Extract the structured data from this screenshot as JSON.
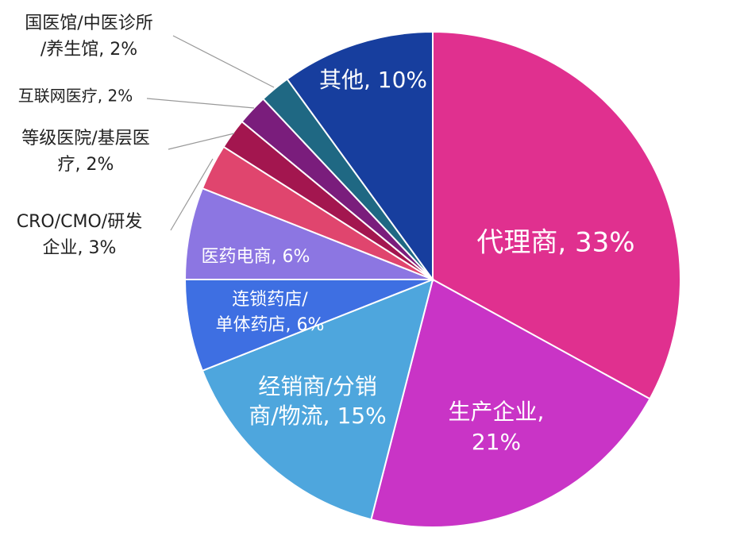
{
  "chart_data": {
    "type": "pie",
    "labels": [
      [
        "代理商, 33%"
      ],
      [
        "生产企业,",
        "21%"
      ],
      [
        "经销商/分销",
        "商/物流, 15%"
      ],
      [
        "连锁药店/",
        "单体药店, 6%"
      ],
      [
        "医药电商, 6%"
      ],
      [
        "CRO/CMO/研发",
        "企业, 3%"
      ],
      [
        "等级医院/基层医",
        "疗, 2%"
      ],
      [
        "互联网医疗, 2%"
      ],
      [
        "国医馆/中医诊所",
        "/养生馆, 2%"
      ],
      [
        "其他, 10%"
      ]
    ],
    "values": [
      33,
      21,
      15,
      6,
      6,
      3,
      2,
      2,
      2,
      10
    ],
    "colors": [
      "#e0308f",
      "#c934c6",
      "#4ea6dd",
      "#3e6fe2",
      "#8c76e2",
      "#e0456e",
      "#a3164f",
      "#7a1d7c",
      "#1f6883",
      "#173e9e"
    ]
  }
}
